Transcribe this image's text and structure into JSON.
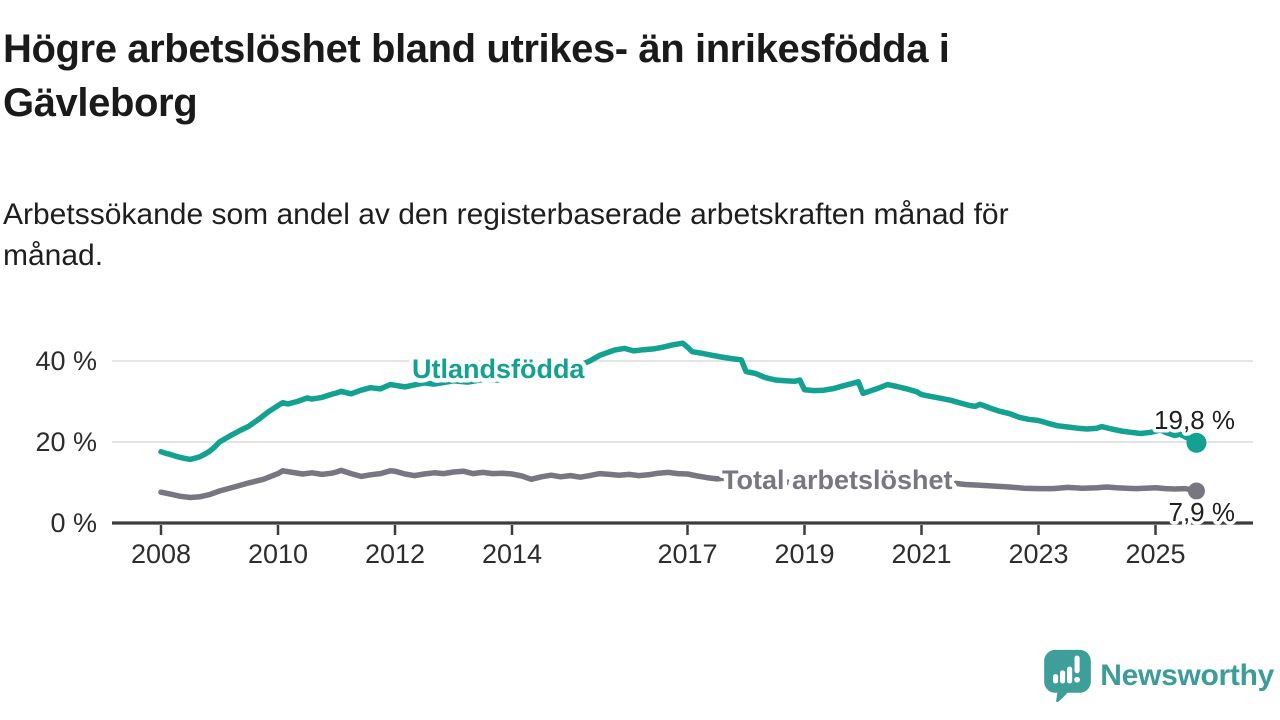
{
  "title_line1": "Högre arbetslöshet bland utrikes- än inrikesfödda i",
  "title_line2": "Gävleborg",
  "subtitle_line1": "Arbetssökande som andel av den registerbaserade arbetskraften månad för",
  "subtitle_line2": "månad.",
  "logo": {
    "text": "Newsworthy"
  },
  "colors": {
    "teal": "#13a191",
    "gray": "#787680",
    "axis": "#3d3d3d",
    "grid": "#dcdcdc",
    "tick_text": "#2d2d2d",
    "value_text": "#1f1f1f",
    "logo_teal": "#3b9c98",
    "background": "#ffffff"
  },
  "chart_data": {
    "type": "line",
    "title": "Högre arbetslöshet bland utrikes- än inrikesfödda i Gävleborg",
    "subtitle": "Arbetssökande som andel av den registerbaserade arbetskraften månad för månad.",
    "unit": "%",
    "x_range_years": [
      2008,
      2025.75
    ],
    "ylim": [
      0,
      46
    ],
    "grid": "horizontal",
    "legend_position": "inline-labels",
    "y_ticks": [
      {
        "label": "0 %",
        "value": 0
      },
      {
        "label": "20 %",
        "value": 20
      },
      {
        "label": "40 %",
        "value": 40
      }
    ],
    "x_ticks": [
      {
        "label": "2008",
        "year": 2008
      },
      {
        "label": "2010",
        "year": 2010
      },
      {
        "label": "2012",
        "year": 2012
      },
      {
        "label": "2014",
        "year": 2014
      },
      {
        "label": "2017",
        "year": 2017
      },
      {
        "label": "2019",
        "year": 2019
      },
      {
        "label": "2021",
        "year": 2021
      },
      {
        "label": "2023",
        "year": 2023
      },
      {
        "label": "2025",
        "year": 2025
      }
    ],
    "series": [
      {
        "key": "utlandsfodda",
        "name": "Utlandsfödda",
        "color": "#13a191",
        "stroke_width": 5.5,
        "name_label": {
          "x_year": 2012.29,
          "y_pct": 35.8
        },
        "end_value": 19.8,
        "end_label": {
          "text": "19,8 %",
          "dy": -14
        },
        "end_dot_r": 10,
        "points": [
          [
            2008.0,
            17.6
          ],
          [
            2008.08,
            17.2
          ],
          [
            2008.17,
            16.9
          ],
          [
            2008.25,
            16.5
          ],
          [
            2008.33,
            16.2
          ],
          [
            2008.42,
            15.9
          ],
          [
            2008.5,
            15.7
          ],
          [
            2008.58,
            16.0
          ],
          [
            2008.67,
            16.4
          ],
          [
            2008.75,
            17.0
          ],
          [
            2008.83,
            17.7
          ],
          [
            2008.92,
            18.8
          ],
          [
            2009.0,
            20.0
          ],
          [
            2009.17,
            21.4
          ],
          [
            2009.33,
            22.7
          ],
          [
            2009.5,
            23.9
          ],
          [
            2009.67,
            25.6
          ],
          [
            2009.83,
            27.4
          ],
          [
            2010.0,
            29.0
          ],
          [
            2010.08,
            29.7
          ],
          [
            2010.17,
            29.4
          ],
          [
            2010.33,
            30.0
          ],
          [
            2010.5,
            30.9
          ],
          [
            2010.58,
            30.6
          ],
          [
            2010.75,
            31.0
          ],
          [
            2010.92,
            31.8
          ],
          [
            2011.0,
            32.1
          ],
          [
            2011.08,
            32.5
          ],
          [
            2011.25,
            31.9
          ],
          [
            2011.42,
            32.8
          ],
          [
            2011.58,
            33.4
          ],
          [
            2011.75,
            33.1
          ],
          [
            2011.92,
            34.2
          ],
          [
            2012.0,
            34.0
          ],
          [
            2012.17,
            33.6
          ],
          [
            2012.33,
            34.1
          ],
          [
            2012.5,
            34.6
          ],
          [
            2012.67,
            34.3
          ],
          [
            2012.83,
            34.7
          ],
          [
            2013.0,
            35.1
          ],
          [
            2013.25,
            34.8
          ],
          [
            2013.5,
            35.4
          ],
          [
            2013.75,
            35.3
          ],
          [
            2014.0,
            36.0
          ],
          [
            2014.25,
            35.9
          ],
          [
            2014.5,
            36.7
          ],
          [
            2014.75,
            37.4
          ],
          [
            2015.0,
            38.2
          ],
          [
            2015.17,
            39.0
          ],
          [
            2015.33,
            40.0
          ],
          [
            2015.5,
            41.4
          ],
          [
            2015.75,
            42.7
          ],
          [
            2015.92,
            43.1
          ],
          [
            2016.08,
            42.5
          ],
          [
            2016.25,
            42.8
          ],
          [
            2016.42,
            43.0
          ],
          [
            2016.58,
            43.4
          ],
          [
            2016.75,
            44.0
          ],
          [
            2016.92,
            44.4
          ],
          [
            2017.0,
            43.4
          ],
          [
            2017.08,
            42.3
          ],
          [
            2017.25,
            41.9
          ],
          [
            2017.42,
            41.4
          ],
          [
            2017.58,
            41.0
          ],
          [
            2017.75,
            40.6
          ],
          [
            2017.92,
            40.3
          ],
          [
            2018.0,
            37.4
          ],
          [
            2018.17,
            36.9
          ],
          [
            2018.33,
            35.9
          ],
          [
            2018.5,
            35.3
          ],
          [
            2018.67,
            35.1
          ],
          [
            2018.83,
            35.0
          ],
          [
            2018.92,
            35.3
          ],
          [
            2019.0,
            32.9
          ],
          [
            2019.17,
            32.7
          ],
          [
            2019.33,
            32.8
          ],
          [
            2019.5,
            33.2
          ],
          [
            2019.67,
            33.9
          ],
          [
            2019.83,
            34.5
          ],
          [
            2019.92,
            34.9
          ],
          [
            2020.0,
            32.0
          ],
          [
            2020.08,
            32.4
          ],
          [
            2020.25,
            33.2
          ],
          [
            2020.42,
            34.2
          ],
          [
            2020.58,
            33.7
          ],
          [
            2020.75,
            33.1
          ],
          [
            2020.92,
            32.4
          ],
          [
            2021.0,
            31.7
          ],
          [
            2021.17,
            31.2
          ],
          [
            2021.33,
            30.8
          ],
          [
            2021.5,
            30.3
          ],
          [
            2021.67,
            29.6
          ],
          [
            2021.83,
            29.0
          ],
          [
            2021.92,
            28.8
          ],
          [
            2022.0,
            29.3
          ],
          [
            2022.17,
            28.4
          ],
          [
            2022.33,
            27.6
          ],
          [
            2022.5,
            27.0
          ],
          [
            2022.67,
            26.1
          ],
          [
            2022.83,
            25.6
          ],
          [
            2023.0,
            25.3
          ],
          [
            2023.17,
            24.6
          ],
          [
            2023.33,
            24.0
          ],
          [
            2023.5,
            23.7
          ],
          [
            2023.67,
            23.4
          ],
          [
            2023.83,
            23.2
          ],
          [
            2024.0,
            23.4
          ],
          [
            2024.08,
            23.8
          ],
          [
            2024.25,
            23.2
          ],
          [
            2024.42,
            22.7
          ],
          [
            2024.58,
            22.4
          ],
          [
            2024.75,
            22.1
          ],
          [
            2024.92,
            22.4
          ],
          [
            2025.08,
            23.0
          ],
          [
            2025.17,
            22.4
          ],
          [
            2025.25,
            22.0
          ],
          [
            2025.33,
            21.6
          ],
          [
            2025.42,
            21.9
          ],
          [
            2025.5,
            21.3
          ],
          [
            2025.58,
            20.8
          ],
          [
            2025.7,
            19.8
          ]
        ]
      },
      {
        "key": "total-arbetsloshet",
        "name": "Total arbetslöshet",
        "color": "#787680",
        "stroke_width": 5.5,
        "name_label": {
          "x_year": 2017.59,
          "y_pct": 8.4
        },
        "end_value": 7.9,
        "end_label": {
          "text": "7,9 %",
          "dy": 30
        },
        "end_dot_r": 8.5,
        "points": [
          [
            2008.0,
            7.6
          ],
          [
            2008.17,
            7.1
          ],
          [
            2008.33,
            6.6
          ],
          [
            2008.5,
            6.3
          ],
          [
            2008.67,
            6.5
          ],
          [
            2008.83,
            7.0
          ],
          [
            2009.0,
            7.9
          ],
          [
            2009.25,
            8.9
          ],
          [
            2009.5,
            9.9
          ],
          [
            2009.75,
            10.8
          ],
          [
            2010.0,
            12.2
          ],
          [
            2010.08,
            12.9
          ],
          [
            2010.25,
            12.5
          ],
          [
            2010.42,
            12.1
          ],
          [
            2010.58,
            12.4
          ],
          [
            2010.75,
            12.0
          ],
          [
            2010.92,
            12.3
          ],
          [
            2011.0,
            12.6
          ],
          [
            2011.08,
            13.0
          ],
          [
            2011.25,
            12.2
          ],
          [
            2011.42,
            11.5
          ],
          [
            2011.58,
            11.9
          ],
          [
            2011.75,
            12.2
          ],
          [
            2011.92,
            12.9
          ],
          [
            2012.0,
            12.8
          ],
          [
            2012.17,
            12.1
          ],
          [
            2012.33,
            11.7
          ],
          [
            2012.5,
            12.1
          ],
          [
            2012.67,
            12.4
          ],
          [
            2012.83,
            12.2
          ],
          [
            2013.0,
            12.6
          ],
          [
            2013.17,
            12.8
          ],
          [
            2013.33,
            12.2
          ],
          [
            2013.5,
            12.5
          ],
          [
            2013.67,
            12.2
          ],
          [
            2013.83,
            12.3
          ],
          [
            2014.0,
            12.1
          ],
          [
            2014.17,
            11.6
          ],
          [
            2014.33,
            10.8
          ],
          [
            2014.5,
            11.4
          ],
          [
            2014.67,
            11.8
          ],
          [
            2014.83,
            11.4
          ],
          [
            2015.0,
            11.7
          ],
          [
            2015.17,
            11.3
          ],
          [
            2015.33,
            11.7
          ],
          [
            2015.5,
            12.2
          ],
          [
            2015.67,
            12.0
          ],
          [
            2015.83,
            11.8
          ],
          [
            2016.0,
            12.0
          ],
          [
            2016.17,
            11.7
          ],
          [
            2016.33,
            11.9
          ],
          [
            2016.5,
            12.3
          ],
          [
            2016.67,
            12.5
          ],
          [
            2016.83,
            12.2
          ],
          [
            2017.0,
            12.1
          ],
          [
            2017.17,
            11.6
          ],
          [
            2017.33,
            11.2
          ],
          [
            2017.5,
            10.9
          ],
          [
            2017.67,
            11.1
          ],
          [
            2017.83,
            10.9
          ],
          [
            2018.0,
            10.5
          ],
          [
            2018.25,
            10.2
          ],
          [
            2018.5,
            10.0
          ],
          [
            2018.75,
            10.1
          ],
          [
            2019.0,
            9.8
          ],
          [
            2019.25,
            9.9
          ],
          [
            2019.5,
            10.1
          ],
          [
            2019.75,
            10.3
          ],
          [
            2020.0,
            10.2
          ],
          [
            2020.25,
            11.1
          ],
          [
            2020.42,
            11.8
          ],
          [
            2020.58,
            11.5
          ],
          [
            2020.83,
            11.1
          ],
          [
            2021.0,
            10.8
          ],
          [
            2021.25,
            10.3
          ],
          [
            2021.5,
            9.9
          ],
          [
            2021.75,
            9.5
          ],
          [
            2022.0,
            9.3
          ],
          [
            2022.25,
            9.1
          ],
          [
            2022.5,
            8.9
          ],
          [
            2022.75,
            8.6
          ],
          [
            2023.0,
            8.5
          ],
          [
            2023.25,
            8.5
          ],
          [
            2023.5,
            8.8
          ],
          [
            2023.75,
            8.6
          ],
          [
            2024.0,
            8.7
          ],
          [
            2024.17,
            8.9
          ],
          [
            2024.33,
            8.7
          ],
          [
            2024.5,
            8.6
          ],
          [
            2024.67,
            8.5
          ],
          [
            2024.83,
            8.6
          ],
          [
            2025.0,
            8.7
          ],
          [
            2025.17,
            8.5
          ],
          [
            2025.33,
            8.4
          ],
          [
            2025.5,
            8.5
          ],
          [
            2025.58,
            8.3
          ],
          [
            2025.7,
            7.9
          ]
        ]
      }
    ]
  }
}
